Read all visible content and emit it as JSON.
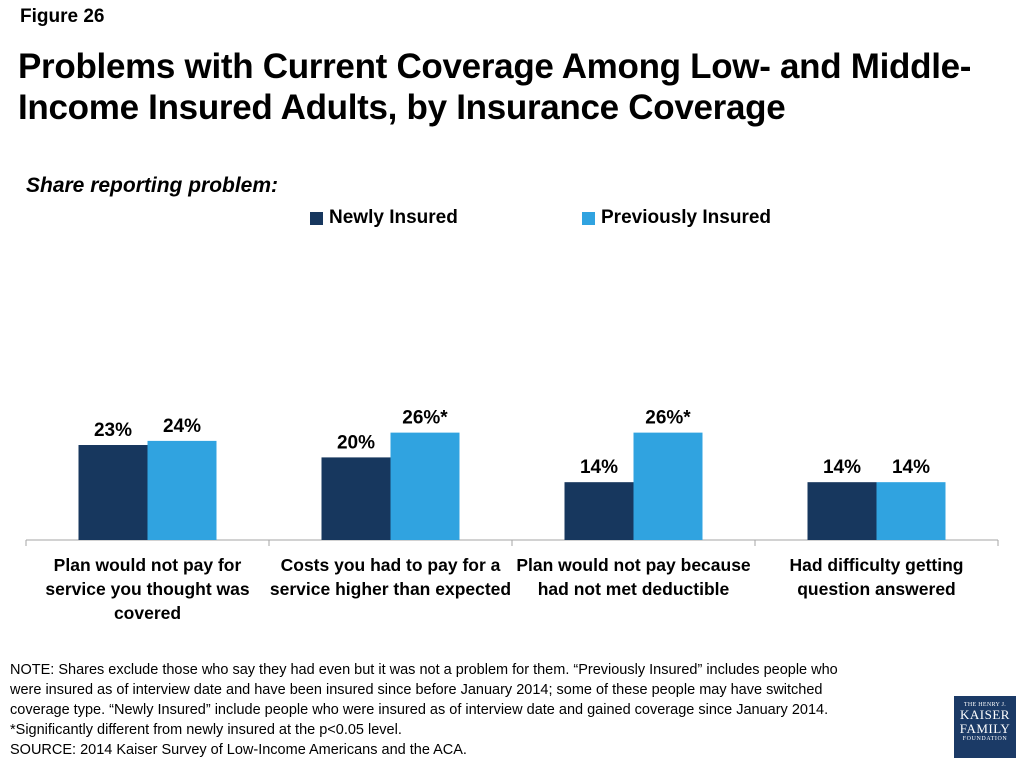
{
  "figure_label": "Figure 26",
  "title_lines": [
    "Problems with Current Coverage Among Low- and Middle-",
    "Income Insured Adults, by Insurance Coverage"
  ],
  "subtitle": "Share reporting problem:",
  "colors": {
    "newly": "#17375e",
    "previously": "#30a3e0",
    "axis": "#a6a6a6"
  },
  "chart_data": {
    "type": "bar",
    "title": "Problems with Current Coverage Among Low- and Middle-Income Insured Adults, by Insurance Coverage",
    "ylabel": "Share reporting problem:",
    "ylim": [
      0,
      30
    ],
    "grid": false,
    "legend": "top",
    "categories": [
      [
        "Plan would not pay for",
        "service you thought was",
        "covered"
      ],
      [
        "Costs you had to pay for a",
        "service higher than expected"
      ],
      [
        "Plan would not pay because",
        "had not met deductible"
      ],
      [
        "Had difficulty getting",
        "question answered"
      ]
    ],
    "series": [
      {
        "name": "Newly Insured",
        "values": [
          23,
          20,
          14,
          14
        ],
        "labels": [
          "23%",
          "20%",
          "14%",
          "14%"
        ]
      },
      {
        "name": "Previously Insured",
        "values": [
          24,
          26,
          26,
          14
        ],
        "labels": [
          "24%",
          "26%*",
          "26%*",
          "14%"
        ]
      }
    ]
  },
  "notes": [
    "NOTE: Shares exclude those who say they had even but it was not a problem for them. “Previously Insured” includes people who",
    "were insured as of interview date and have been insured since before January 2014; some of these people may have switched",
    "coverage type. “Newly Insured” include people who were insured as of interview date and gained coverage since January 2014.",
    "*Significantly different from newly insured at the p<0.05 level.",
    "SOURCE: 2014 Kaiser Survey of Low-Income Americans and the ACA."
  ],
  "logo": {
    "line1": "THE HENRY J.",
    "line2": "KAISER",
    "line3": "FAMILY",
    "line4": "FOUNDATION"
  }
}
